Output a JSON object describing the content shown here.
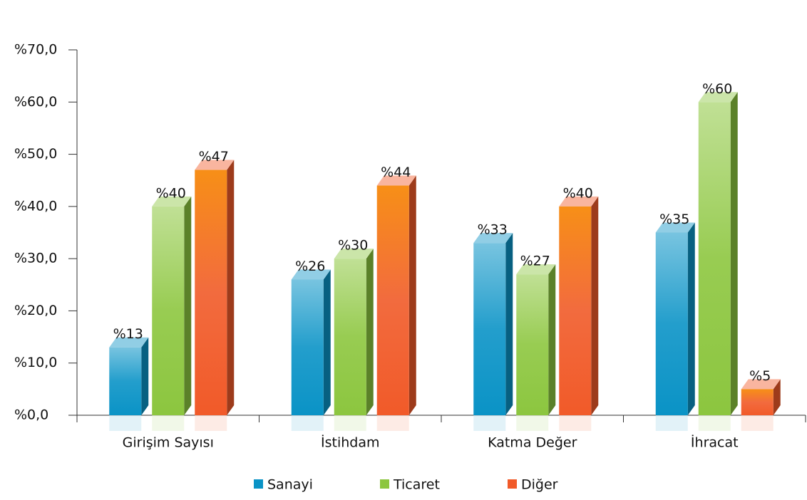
{
  "chart_data": {
    "type": "bar",
    "categories": [
      "Girişim Sayısı",
      "İstihdam",
      "Katma Değer",
      "İhracat"
    ],
    "series": [
      {
        "name": "Sanayi",
        "color": "#0a93c6",
        "values": [
          13,
          26,
          33,
          35
        ],
        "value_labels": [
          "%13",
          "%26",
          "%33",
          "%35"
        ]
      },
      {
        "name": "Ticaret",
        "color": "#8cc63f",
        "values": [
          40,
          30,
          27,
          60
        ],
        "value_labels": [
          "%40",
          "%30",
          "%27",
          "%60"
        ]
      },
      {
        "name": "Diğer",
        "color": "#f15a29",
        "values": [
          47,
          44,
          40,
          5
        ],
        "value_labels": [
          "%47",
          "%44",
          "%40",
          "%5"
        ]
      }
    ],
    "ylim": [
      0,
      70
    ],
    "yticks": [
      {
        "value": 0,
        "label": "%0,0"
      },
      {
        "value": 10,
        "label": "%10,0"
      },
      {
        "value": 20,
        "label": "%20,0"
      },
      {
        "value": 30,
        "label": "%30,0"
      },
      {
        "value": 40,
        "label": "%40,0"
      },
      {
        "value": 50,
        "label": "%50,0"
      },
      {
        "value": 60,
        "label": "%60,0"
      },
      {
        "value": 70,
        "label": "%70,0"
      }
    ],
    "legend": "bottom"
  }
}
